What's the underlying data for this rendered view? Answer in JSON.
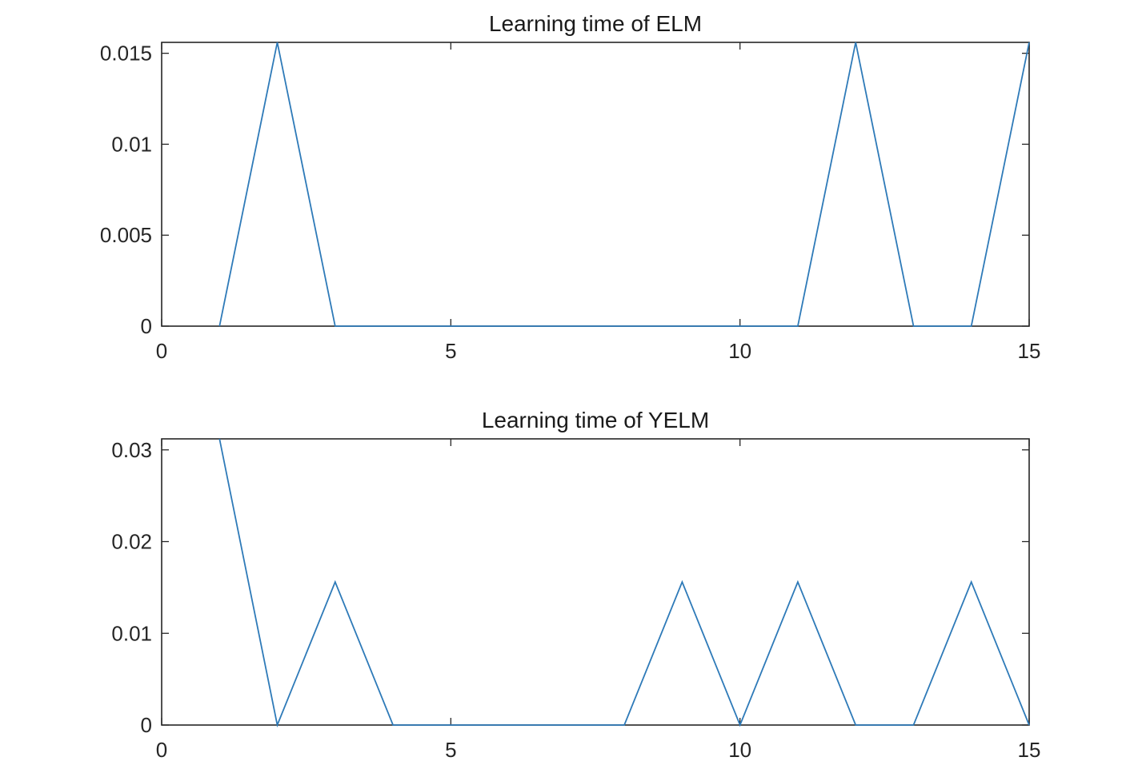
{
  "chart_data": [
    {
      "type": "line",
      "title": "Learning time of ELM",
      "xlabel": "",
      "ylabel": "",
      "xlim": [
        0,
        15
      ],
      "ylim": [
        0,
        0.0156
      ],
      "xticks": [
        0,
        5,
        10,
        15
      ],
      "xtick_labels": [
        "0",
        "5",
        "10",
        "15"
      ],
      "yticks": [
        0,
        0.005,
        0.01,
        0.015
      ],
      "ytick_labels": [
        "0",
        "0.005",
        "0.01",
        "0.015"
      ],
      "grid": false,
      "legend": "none",
      "series": [
        {
          "color": "#2e7ab8",
          "x": [
            1,
            2,
            3,
            4,
            5,
            6,
            7,
            8,
            9,
            10,
            11,
            12,
            13,
            14,
            15
          ],
          "y": [
            0,
            0.0156,
            0,
            0,
            0,
            0,
            0,
            0,
            0,
            0,
            0,
            0.0156,
            0,
            0,
            0.0156
          ]
        }
      ]
    },
    {
      "type": "line",
      "title": "Learning time of YELM",
      "xlabel": "",
      "ylabel": "",
      "xlim": [
        0,
        15
      ],
      "ylim": [
        0,
        0.0312
      ],
      "xticks": [
        0,
        5,
        10,
        15
      ],
      "xtick_labels": [
        "0",
        "5",
        "10",
        "15"
      ],
      "yticks": [
        0,
        0.01,
        0.02,
        0.03
      ],
      "ytick_labels": [
        "0",
        "0.01",
        "0.02",
        "0.03"
      ],
      "grid": false,
      "legend": "none",
      "series": [
        {
          "color": "#2e7ab8",
          "x": [
            1,
            2,
            3,
            4,
            5,
            6,
            7,
            8,
            9,
            10,
            11,
            12,
            13,
            14,
            15
          ],
          "y": [
            0.0312,
            0,
            0.0156,
            0,
            0,
            0,
            0,
            0,
            0.0156,
            0,
            0.0156,
            0,
            0,
            0.0156,
            0
          ]
        }
      ]
    }
  ]
}
